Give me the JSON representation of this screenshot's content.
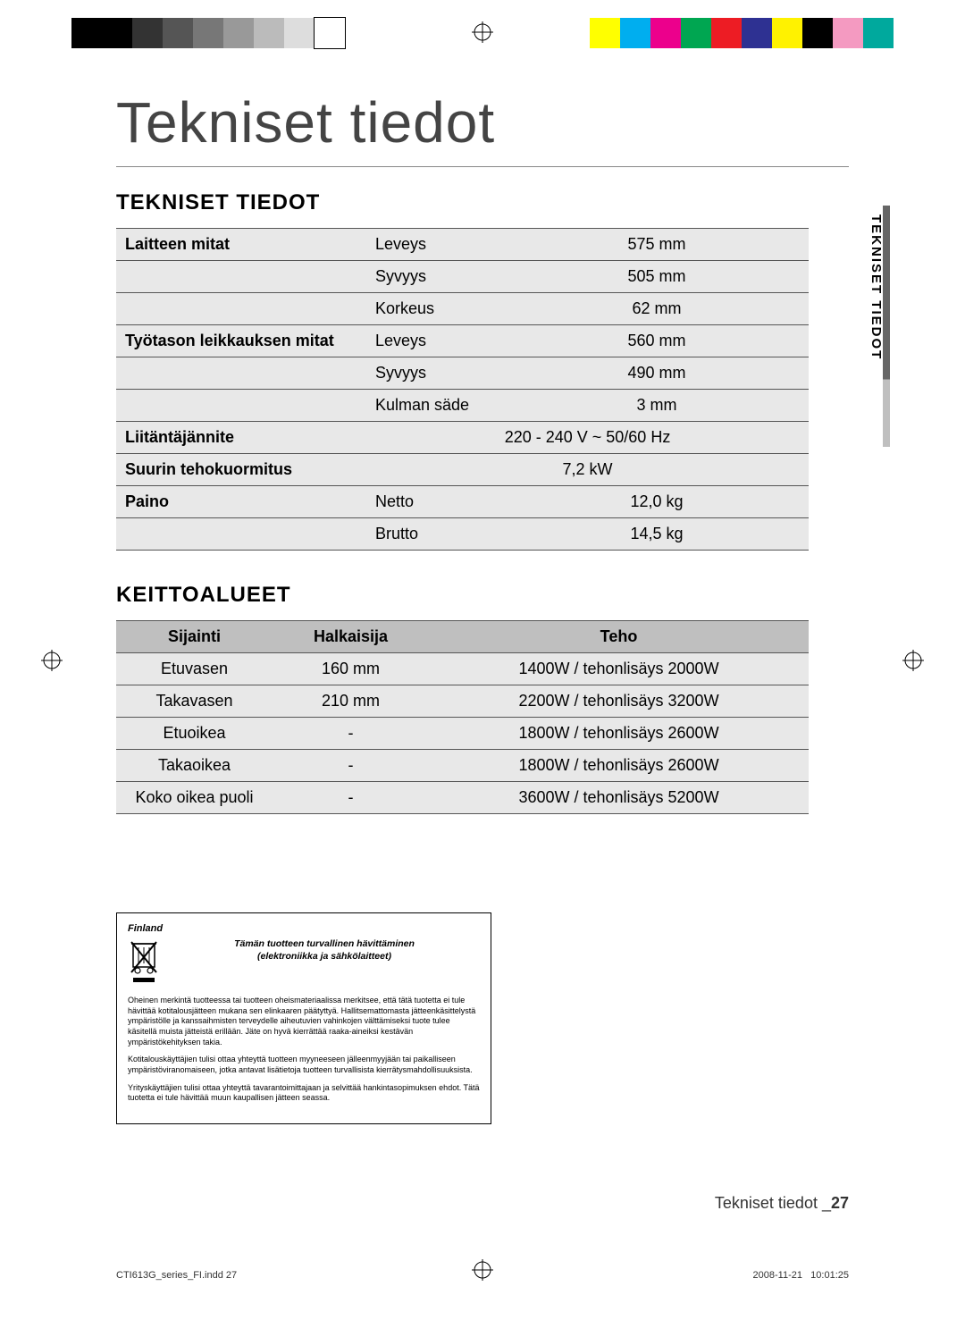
{
  "colorbar": {
    "grays": [
      "#000000",
      "#000000",
      "#333333",
      "#555555",
      "#777777",
      "#999999",
      "#bbbbbb",
      "#dddddd",
      "#ffffff"
    ],
    "colors": [
      "#ffff00",
      "#00aeef",
      "#ec008c",
      "#00a651",
      "#ed1c24",
      "#2e3192",
      "#fff200",
      "#000000",
      "#f49ac1",
      "#00a99d"
    ]
  },
  "headings": {
    "main": "Tekniset tiedot",
    "specs": "TEKNISET TIEDOT",
    "zones": "KEITTOALUEET"
  },
  "side_tab": "TEKNISET TIEDOT",
  "specs": {
    "rows": [
      {
        "group": "Laitteen mitat",
        "label": "Leveys",
        "value": "575 mm"
      },
      {
        "group": "",
        "label": "Syvyys",
        "value": "505 mm"
      },
      {
        "group": "",
        "label": "Korkeus",
        "value": "62 mm"
      },
      {
        "group": "Työtason leikkauksen mitat",
        "label": "Leveys",
        "value": "560 mm"
      },
      {
        "group": "",
        "label": "Syvyys",
        "value": "490 mm"
      },
      {
        "group": "",
        "label": "Kulman säde",
        "value": "3 mm"
      },
      {
        "group": "Liitäntäjännite",
        "label": "",
        "value": "220 - 240 V ~ 50/60 Hz"
      },
      {
        "group": "Suurin tehokuormitus",
        "label": "",
        "value": "7,2 kW"
      },
      {
        "group": "Paino",
        "label": "Netto",
        "value": "12,0 kg"
      },
      {
        "group": "",
        "label": "Brutto",
        "value": "14,5 kg"
      }
    ]
  },
  "zones": {
    "headers": [
      "Sijainti",
      "Halkaisija",
      "Teho"
    ],
    "rows": [
      [
        "Etuvasen",
        "160 mm",
        "1400W / tehonlisäys 2000W"
      ],
      [
        "Takavasen",
        "210 mm",
        "2200W / tehonlisäys 3200W"
      ],
      [
        "Etuoikea",
        "-",
        "1800W / tehonlisäys 2600W"
      ],
      [
        "Takaoikea",
        "-",
        "1800W / tehonlisäys 2600W"
      ],
      [
        "Koko oikea puoli",
        "-",
        "3600W / tehonlisäys 5200W"
      ]
    ]
  },
  "disposal": {
    "country": "Finland",
    "title": "Tämän tuotteen turvallinen hävittäminen",
    "subtitle": "(elektroniikka ja sähkölaitteet)",
    "p1": "Oheinen merkintä tuotteessa tai tuotteen oheismateriaalissa merkitsee, että tätä tuotetta ei tule hävittää kotitalousjätteen mukana sen elinkaaren päätyttyä. Hallitsemattomasta jätteenkäsittelystä ympäristölle ja kanssaihmisten terveydelle aiheutuvien vahinkojen välttämiseksi tuote tulee käsitellä muista jätteistä erillään. Jäte on hyvä kierrättää raaka-aineiksi kestävän ympäristökehityksen takia.",
    "p2": "Kotitalouskäyttäjien tulisi ottaa yhteyttä tuotteen myyneeseen jälleenmyyjään tai paikalliseen ympäristöviranomaiseen, jotka antavat lisätietoja tuotteen turvallisista kierrätysmahdollisuuksista.",
    "p3": "Yrityskäyttäjien tulisi ottaa yhteyttä tavarantoimittajaan ja selvittää hankintasopimuksen ehdot. Tätä tuotetta ei tule hävittää muun kaupallisen jätteen seassa."
  },
  "footer": {
    "pagetitle": "Tekniset tiedot _",
    "pagenum": "27",
    "file": "CTI613G_series_FI.indd   27",
    "date": "2008-11-21",
    "time": "10:01:25"
  }
}
